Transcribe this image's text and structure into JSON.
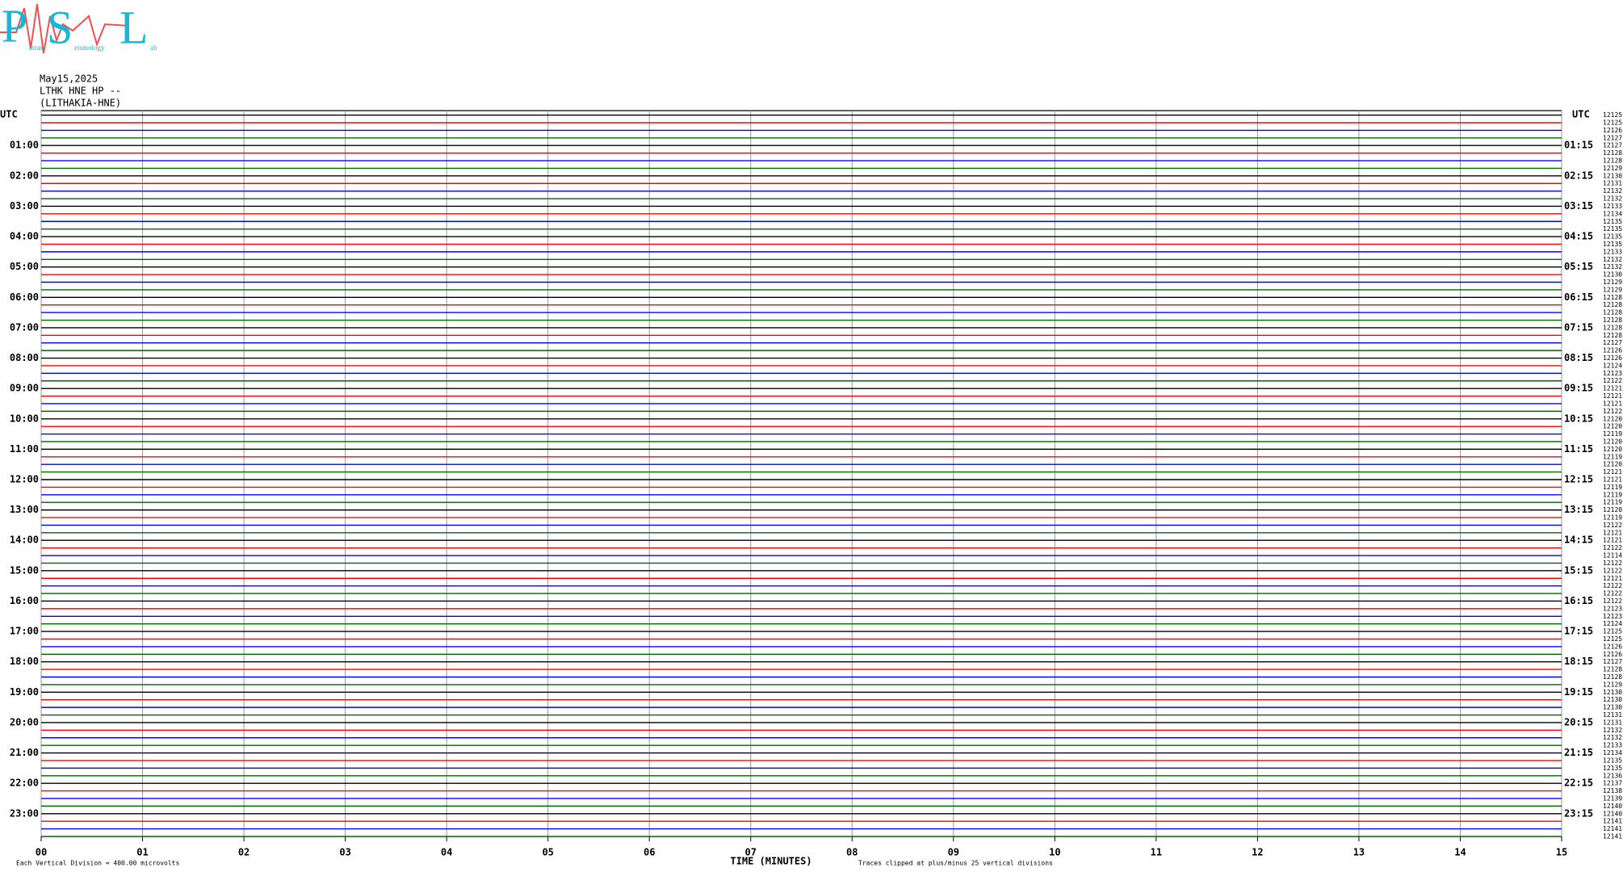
{
  "logo": {
    "letters": [
      "P",
      "S",
      "L"
    ],
    "words": [
      "atras",
      "eismology",
      "ab"
    ]
  },
  "header": {
    "date": "May15,2025",
    "station": "LTHK HNE HP --",
    "site": "(LITHAKIA-HNE)"
  },
  "left_corner": "UTC",
  "right_corner": "UTC",
  "left_labels": [
    "01:00",
    "02:00",
    "03:00",
    "04:00",
    "05:00",
    "06:00",
    "07:00",
    "08:00",
    "09:00",
    "10:00",
    "11:00",
    "12:00",
    "13:00",
    "14:00",
    "15:00",
    "16:00",
    "17:00",
    "18:00",
    "19:00",
    "20:00",
    "21:00",
    "22:00",
    "23:00"
  ],
  "right_labels": [
    "01:15",
    "02:15",
    "03:15",
    "04:15",
    "05:15",
    "06:15",
    "07:15",
    "08:15",
    "09:15",
    "10:15",
    "11:15",
    "12:15",
    "13:15",
    "14:15",
    "15:15",
    "16:15",
    "17:15",
    "18:15",
    "19:15",
    "20:15",
    "21:15",
    "22:15",
    "23:15"
  ],
  "trace_counts": [
    "12125",
    "12125",
    "12126",
    "12127",
    "12127",
    "12128",
    "12128",
    "12129",
    "12130",
    "12131",
    "12132",
    "12132",
    "12133",
    "12134",
    "12135",
    "12135",
    "12135",
    "12135",
    "12133",
    "12132",
    "12132",
    "12130",
    "12129",
    "12129",
    "12128",
    "12128",
    "12128",
    "12128",
    "12128",
    "12128",
    "12127",
    "12126",
    "12126",
    "12124",
    "12123",
    "12122",
    "12121",
    "12121",
    "12121",
    "12122",
    "12120",
    "12120",
    "12119",
    "12120",
    "12120",
    "12119",
    "12120",
    "12121",
    "12121",
    "12119",
    "12119",
    "12119",
    "12120",
    "12119",
    "12122",
    "12121",
    "12121",
    "12122",
    "12114",
    "12122",
    "12122",
    "12121",
    "12122",
    "12122",
    "12122",
    "12123",
    "12123",
    "12124",
    "12125",
    "12125",
    "12126",
    "12126",
    "12127",
    "12128",
    "12128",
    "12129",
    "12130",
    "12130",
    "12130",
    "12131",
    "12131",
    "12132",
    "12132",
    "12133",
    "12134",
    "12135",
    "12135",
    "12136",
    "12137",
    "12138",
    "12139",
    "12140",
    "12140",
    "12141",
    "12141",
    "12141"
  ],
  "time_axis": {
    "label": "TIME (MINUTES)",
    "ticks": [
      {
        "value": 0,
        "label": "00"
      },
      {
        "value": 1,
        "label": "01"
      },
      {
        "value": 2,
        "label": "02"
      },
      {
        "value": 3,
        "label": "03"
      },
      {
        "value": 4,
        "label": "04"
      },
      {
        "value": 5,
        "label": "05"
      },
      {
        "value": 6,
        "label": "06"
      },
      {
        "value": 7,
        "label": "07"
      },
      {
        "value": 8,
        "label": "08"
      },
      {
        "value": 9,
        "label": "09"
      },
      {
        "value": 10,
        "label": "10"
      },
      {
        "value": 11,
        "label": "11"
      },
      {
        "value": 12,
        "label": "12"
      },
      {
        "value": 13,
        "label": "13"
      },
      {
        "value": 14,
        "label": "14"
      },
      {
        "value": 15,
        "label": "15"
      }
    ]
  },
  "footer": {
    "scale": "Each Vertical Division =  400.00 microvolts",
    "clip": "Traces clipped at plus/minus 25 vertical divisions"
  }
}
